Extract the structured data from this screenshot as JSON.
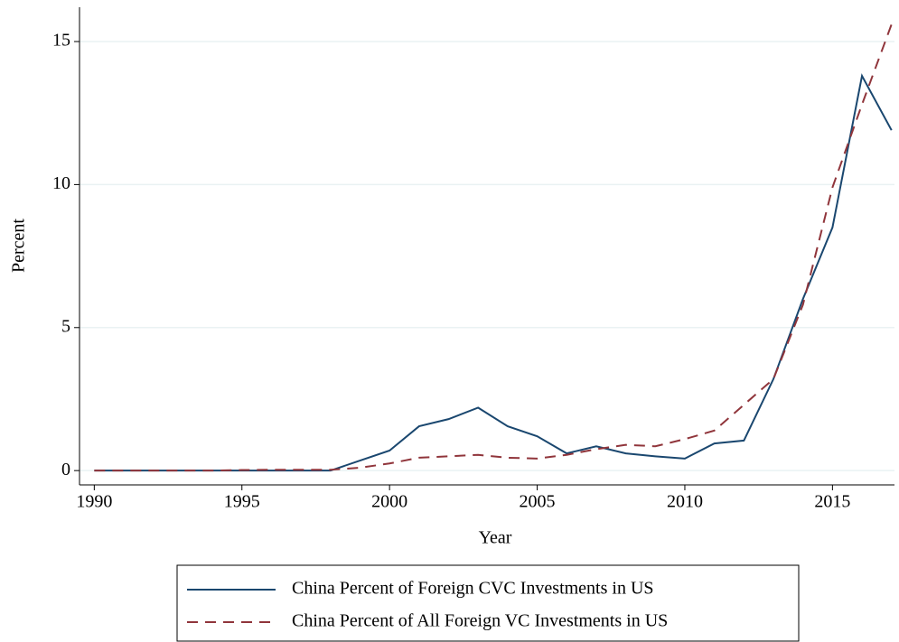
{
  "chart_data": {
    "type": "line",
    "x": [
      1990,
      1991,
      1992,
      1993,
      1994,
      1995,
      1996,
      1997,
      1998,
      1999,
      2000,
      2001,
      2002,
      2003,
      2004,
      2005,
      2006,
      2007,
      2008,
      2009,
      2010,
      2011,
      2012,
      2013,
      2014,
      2015,
      2016,
      2017
    ],
    "series": [
      {
        "name": "China Percent of Foreign CVC Investments in US",
        "color": "#1a476f",
        "dash": false,
        "values": [
          0,
          0,
          0,
          0,
          0,
          0,
          0,
          0,
          0,
          0.35,
          0.7,
          1.55,
          1.8,
          2.2,
          1.55,
          1.2,
          0.6,
          0.85,
          0.6,
          0.5,
          0.42,
          0.95,
          1.05,
          3.2,
          6.0,
          8.5,
          13.8,
          11.9
        ]
      },
      {
        "name": "China Percent of All Foreign VC Investments in US",
        "color": "#90353b",
        "dash": true,
        "values": [
          0,
          0,
          0,
          0,
          0,
          0.02,
          0.03,
          0.03,
          0.03,
          0.1,
          0.25,
          0.45,
          0.5,
          0.55,
          0.45,
          0.42,
          0.55,
          0.75,
          0.9,
          0.85,
          1.1,
          1.4,
          2.3,
          3.2,
          5.8,
          9.9,
          12.8,
          15.6
        ]
      }
    ],
    "x_label": "Year",
    "y_label": "Percent",
    "xlim": [
      1989.5,
      2017.1
    ],
    "xticks": [
      1990,
      1995,
      2000,
      2005,
      2010,
      2015
    ],
    "ylim": [
      -0.5,
      16.2
    ],
    "yticks": [
      0,
      5,
      10,
      15
    ],
    "grid": true
  }
}
